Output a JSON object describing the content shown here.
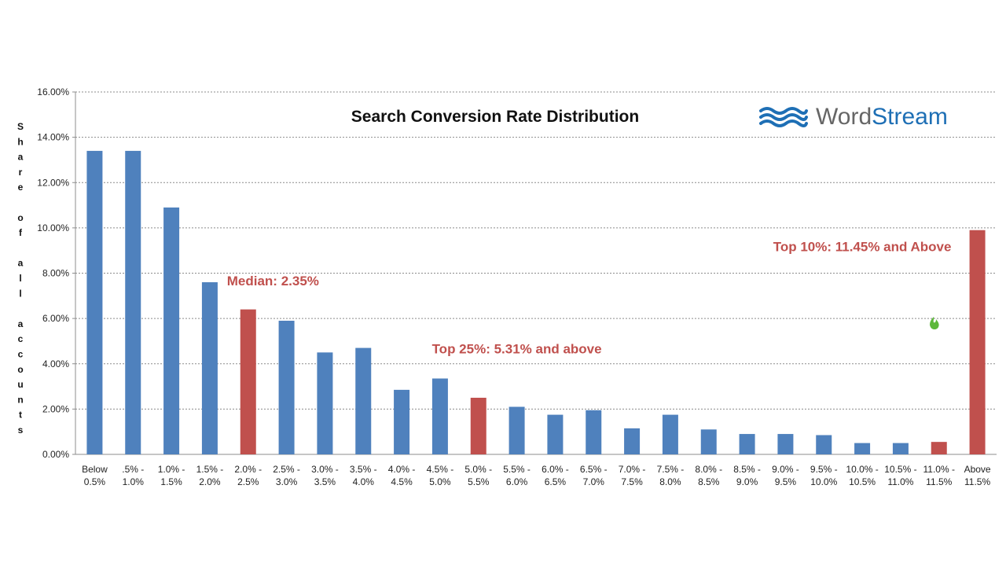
{
  "chart_data": {
    "type": "bar",
    "title": "Search Conversion Rate Distribution",
    "ylabel": "Share of all accounts",
    "xlabel": "",
    "ylim": [
      0,
      16
    ],
    "yticks": [
      "0.00%",
      "2.00%",
      "4.00%",
      "6.00%",
      "8.00%",
      "10.00%",
      "12.00%",
      "14.00%",
      "16.00%"
    ],
    "grid": true,
    "categories": [
      [
        "Below",
        "0.5%"
      ],
      [
        ".5% -",
        "1.0%"
      ],
      [
        "1.0% -",
        "1.5%"
      ],
      [
        "1.5% -",
        "2.0%"
      ],
      [
        "2.0% -",
        "2.5%"
      ],
      [
        "2.5% -",
        "3.0%"
      ],
      [
        "3.0% -",
        "3.5%"
      ],
      [
        "3.5% -",
        "4.0%"
      ],
      [
        "4.0% -",
        "4.5%"
      ],
      [
        "4.5% -",
        "5.0%"
      ],
      [
        "5.0% -",
        "5.5%"
      ],
      [
        "5.5% -",
        "6.0%"
      ],
      [
        "6.0% -",
        "6.5%"
      ],
      [
        "6.5% -",
        "7.0%"
      ],
      [
        "7.0% -",
        "7.5%"
      ],
      [
        "7.5% -",
        "8.0%"
      ],
      [
        "8.0% -",
        "8.5%"
      ],
      [
        "8.5% -",
        "9.0%"
      ],
      [
        "9.0% -",
        "9.5%"
      ],
      [
        "9.5% -",
        "10.0%"
      ],
      [
        "10.0% -",
        "10.5%"
      ],
      [
        "10.5% -",
        "11.0%"
      ],
      [
        "11.0% -",
        "11.5%"
      ],
      [
        "Above",
        "11.5%"
      ]
    ],
    "values": [
      13.4,
      13.4,
      10.9,
      7.6,
      6.4,
      5.9,
      4.5,
      4.7,
      2.85,
      3.35,
      2.5,
      2.1,
      1.75,
      1.95,
      1.15,
      1.75,
      1.1,
      0.9,
      0.9,
      0.85,
      0.5,
      0.5,
      0.55,
      9.9
    ],
    "highlighted": [
      4,
      10,
      22,
      23
    ],
    "annotations": [
      {
        "text": "Median: 2.35%",
        "category_index": 4,
        "y": 7.5
      },
      {
        "text": "Top 25%: 5.31% and above",
        "category_index": 11,
        "y": 4.5
      },
      {
        "text": "Top 10%: 11.45% and Above",
        "category_index": 20,
        "y": 9.0
      }
    ]
  },
  "logo": {
    "brand": "WordStream",
    "part1": "Word",
    "part2": "Stream",
    "icon": "wave-icon"
  },
  "small_icon": "flame-icon",
  "colors": {
    "bar": "#4f81bd",
    "highlight": "#c0504d",
    "annotation": "#c0504d",
    "grid": "#8c8c8c",
    "logo_word": "#666666",
    "logo_stream": "#1e6fb5",
    "flame": "#5cb83a"
  }
}
